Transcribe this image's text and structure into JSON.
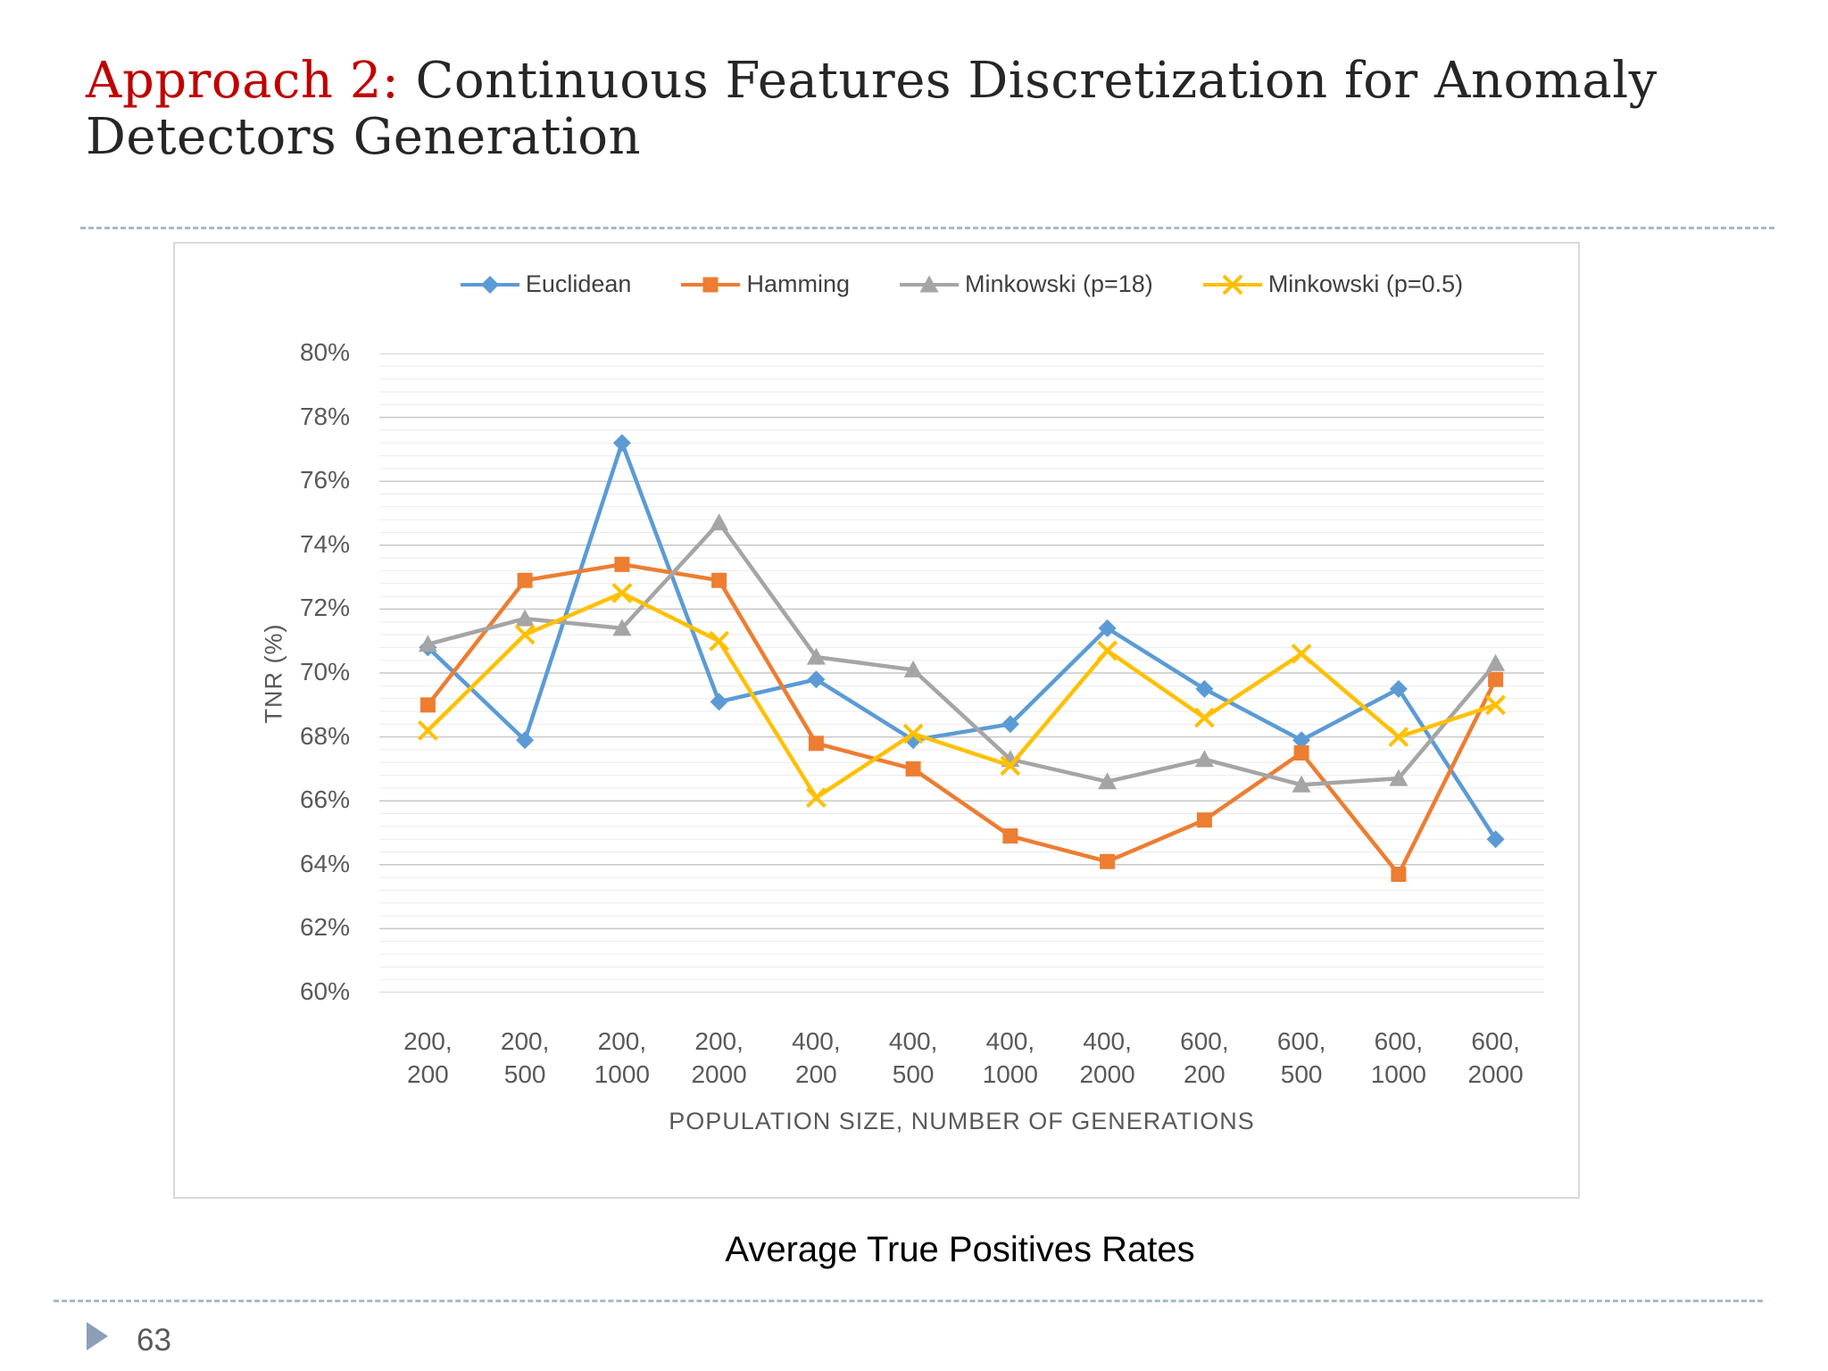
{
  "slide": {
    "title_accent": "Approach 2:",
    "title_rest": " Continuous Features Discretization for Anomaly Detectors Generation",
    "caption": "Average True Positives Rates",
    "page_number": "63"
  },
  "colors": {
    "title_accent": "#C00000",
    "title_text": "#262626",
    "divider": "#a7bac9",
    "axis_text": "#595959",
    "legend_text": "#404040",
    "grid_major": "#c9c9c9",
    "grid_minor": "#ebebeb",
    "chart_border": "#d9d9d9",
    "page_arrow": "#8c9fb8"
  },
  "chart_data": {
    "type": "line",
    "title": "",
    "xlabel": "POPULATION SIZE, NUMBER OF GENERATIONS",
    "ylabel": "TNR (%)",
    "ylim": [
      60,
      80
    ],
    "y_major_step": 2,
    "y_minor_step": 0.4,
    "y_tick_suffix": "%",
    "grid": true,
    "legend_position": "top",
    "categories": [
      "200, 200",
      "200, 500",
      "200, 1000",
      "200, 2000",
      "400, 200",
      "400, 500",
      "400, 1000",
      "400, 2000",
      "600, 200",
      "600, 500",
      "600, 1000",
      "600, 2000"
    ],
    "series": [
      {
        "name": "Euclidean",
        "color": "#5B9BD5",
        "marker": "diamond",
        "values": [
          70.8,
          67.9,
          77.2,
          69.1,
          69.8,
          67.9,
          68.4,
          71.4,
          69.5,
          67.9,
          69.5,
          64.8
        ]
      },
      {
        "name": "Hamming",
        "color": "#ED7D31",
        "marker": "square",
        "values": [
          69.0,
          72.9,
          73.4,
          72.9,
          67.8,
          67.0,
          64.9,
          64.1,
          65.4,
          67.5,
          63.7,
          69.8
        ]
      },
      {
        "name": "Minkowski (p=18)",
        "color": "#A5A5A5",
        "marker": "triangle",
        "values": [
          70.9,
          71.7,
          71.4,
          74.7,
          70.5,
          70.1,
          67.3,
          66.6,
          67.3,
          66.5,
          66.7,
          70.3
        ]
      },
      {
        "name": "Minkowski (p=0.5)",
        "color": "#FFC000",
        "marker": "x",
        "values": [
          68.2,
          71.2,
          72.5,
          71.0,
          66.1,
          68.1,
          67.1,
          70.7,
          68.6,
          70.6,
          68.0,
          69.0
        ]
      }
    ]
  }
}
